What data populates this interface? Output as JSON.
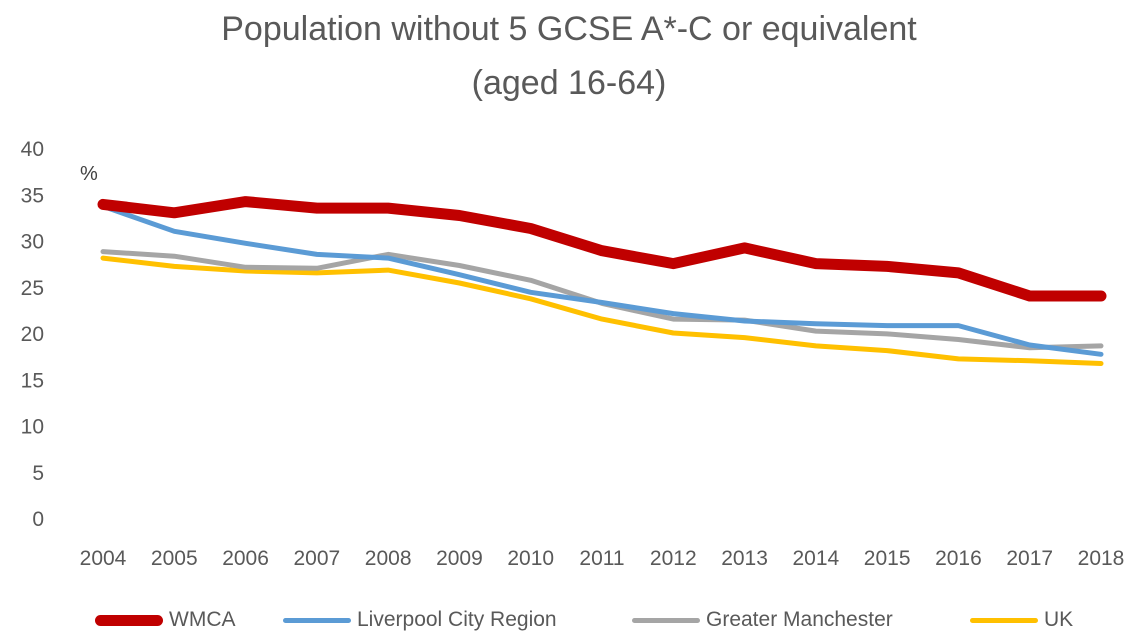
{
  "chart_data": {
    "type": "line",
    "title": "Population without 5 GCSE A*-C or equivalent",
    "subtitle": "(aged 16-64)",
    "unit_label": "%",
    "xlabel": "",
    "ylabel": "",
    "ylim": [
      0,
      40
    ],
    "yticks": [
      0,
      5,
      10,
      15,
      20,
      25,
      30,
      35,
      40
    ],
    "grid": false,
    "legend_position": "bottom",
    "x": [
      "2004",
      "2005",
      "2006",
      "2007",
      "2008",
      "2009",
      "2010",
      "2011",
      "2012",
      "2013",
      "2014",
      "2015",
      "2016",
      "2017",
      "2018"
    ],
    "series": [
      {
        "name": "WMCA",
        "color": "#c00000",
        "values": [
          33.9,
          33.0,
          34.2,
          33.5,
          33.5,
          32.7,
          31.3,
          28.9,
          27.5,
          29.2,
          27.5,
          27.2,
          26.5,
          24.0,
          24.0
        ]
      },
      {
        "name": "Liverpool City Region",
        "color": "#5b9bd5",
        "values": [
          33.7,
          31.0,
          29.7,
          28.5,
          28.1,
          26.3,
          24.4,
          23.3,
          22.1,
          21.3,
          21.0,
          20.8,
          20.8,
          18.7,
          17.7
        ]
      },
      {
        "name": "Greater Manchester",
        "color": "#a5a5a5",
        "values": [
          28.8,
          28.3,
          27.1,
          27.0,
          28.5,
          27.3,
          25.7,
          23.2,
          21.5,
          21.4,
          20.2,
          19.9,
          19.3,
          18.4,
          18.6
        ]
      },
      {
        "name": "UK",
        "color": "#ffc000",
        "values": [
          28.1,
          27.2,
          26.7,
          26.5,
          26.8,
          25.4,
          23.7,
          21.5,
          20.0,
          19.5,
          18.6,
          18.1,
          17.2,
          17.0,
          16.7
        ]
      }
    ]
  }
}
